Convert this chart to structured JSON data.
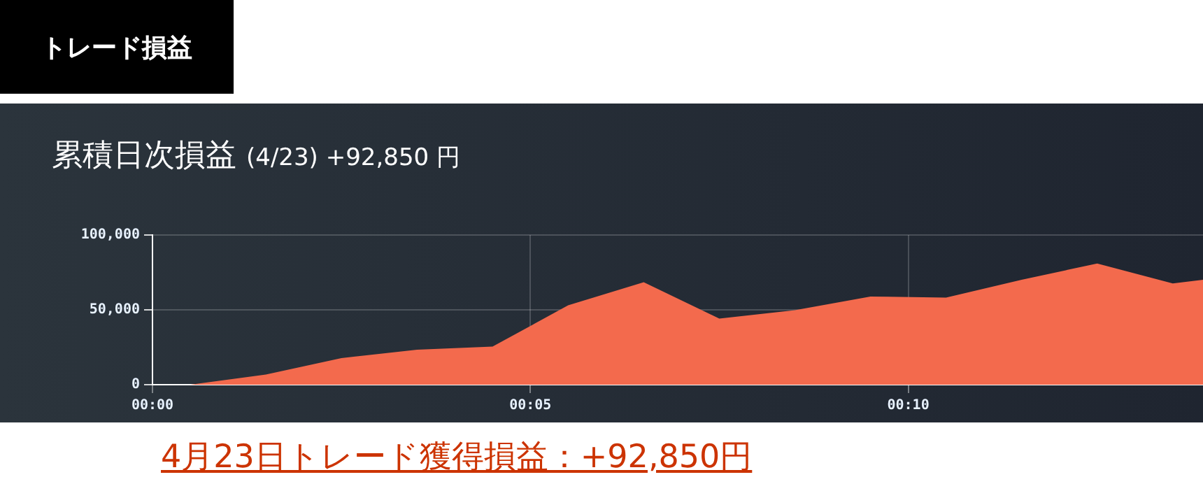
{
  "chart_data": {
    "type": "area",
    "title": "累積日次損益",
    "subtitle": "(4/23) +92,850 円",
    "annotations": [
      "トレード損益",
      "4月23日トレード獲得損益：+92,850円"
    ],
    "x": [
      0.5,
      1.5,
      2.5,
      3.5,
      4.5,
      5.5,
      6.5,
      7.5,
      8.5,
      9.5,
      10.5,
      11.5,
      12.5,
      13.5,
      13.9
    ],
    "series": [
      {
        "color": "#f36a4d",
        "values": [
          0,
          6800,
          17800,
          23400,
          25500,
          53000,
          68500,
          44200,
          49800,
          58900,
          58200,
          70100,
          81000,
          67600,
          70100
        ]
      }
    ],
    "xlim": [
      0,
      13.9
    ],
    "xticks": [
      {
        "value": 0,
        "label": "00:00"
      },
      {
        "value": 5,
        "label": "00:05"
      },
      {
        "value": 10,
        "label": "00:10"
      }
    ],
    "ylim": [
      0,
      100000
    ],
    "yticks": [
      {
        "value": 0,
        "label": "0"
      },
      {
        "value": 50000,
        "label": "50,000"
      },
      {
        "value": 100000,
        "label": "100,000"
      }
    ],
    "grid": true,
    "legend": false,
    "marker": "none"
  }
}
